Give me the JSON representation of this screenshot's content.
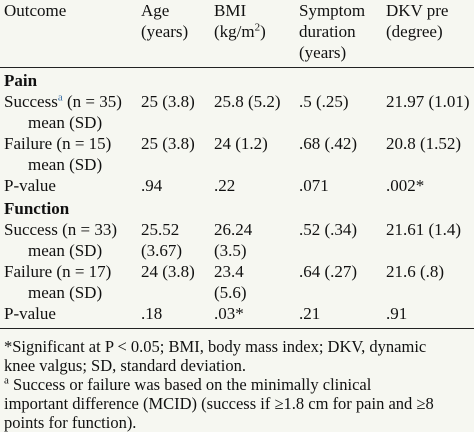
{
  "table": {
    "headers": {
      "outcome": "Outcome",
      "age_1": "Age",
      "age_2": "(years)",
      "bmi_1": "BMI",
      "bmi_2a": "(kg/m",
      "bmi_2sup": "2",
      "bmi_2b": ")",
      "sym_1": "Symptom",
      "sym_2": "duration",
      "sym_3": "(years)",
      "dkv_1": "DKV pre",
      "dkv_2": "(degree)"
    },
    "sections": [
      {
        "title": "Pain",
        "rows": [
          {
            "label_1": "Success",
            "label_sup": "a",
            "label_1b": " (n = 35)",
            "label_2": "mean (SD)",
            "age": "25 (3.8)",
            "age_2": "",
            "bmi": "25.8 (5.2)",
            "bmi_2": "",
            "sym": ".5 (.25)",
            "dkv": "21.97 (1.01)"
          },
          {
            "label_1": "Failure (n = 15)",
            "label_sup": "",
            "label_1b": "",
            "label_2": "mean (SD)",
            "age": "25 (3.8)",
            "age_2": "",
            "bmi": "24 (1.2)",
            "bmi_2": "",
            "sym": ".68 (.42)",
            "dkv": "20.8 (1.52)"
          }
        ],
        "pvalue": {
          "label": "P-value",
          "age": ".94",
          "bmi": ".22",
          "sym": ".071",
          "dkv": ".002*"
        }
      },
      {
        "title": "Function",
        "rows": [
          {
            "label_1": "Success (n = 33)",
            "label_sup": "",
            "label_1b": "",
            "label_2": "mean (SD)",
            "age": "25.52",
            "age_2": "(3.67)",
            "bmi": "26.24",
            "bmi_2": "(3.5)",
            "sym": ".52 (.34)",
            "dkv": "21.61 (1.4)"
          },
          {
            "label_1": "Failure (n = 17)",
            "label_sup": "",
            "label_1b": "",
            "label_2": "mean (SD)",
            "age": "24 (3.8)",
            "age_2": "",
            "bmi": "23.4",
            "bmi_2": "(5.6)",
            "sym": ".64 (.27)",
            "dkv": "21.6 (.8)"
          }
        ],
        "pvalue": {
          "label": "P-value",
          "age": ".18",
          "bmi": ".03*",
          "sym": ".21",
          "dkv": ".91"
        }
      }
    ]
  },
  "footnotes": {
    "line1": "*Significant at P < 0.05; BMI, body mass index; DKV, dynamic",
    "line2": "knee valgus; SD, standard deviation.",
    "line3_sup": "a",
    "line3": " Success or failure was based on the minimally clinical",
    "line4": "important difference (MCID) (success if ≥1.8 cm for pain and ≥8",
    "line5": "points for function)."
  }
}
